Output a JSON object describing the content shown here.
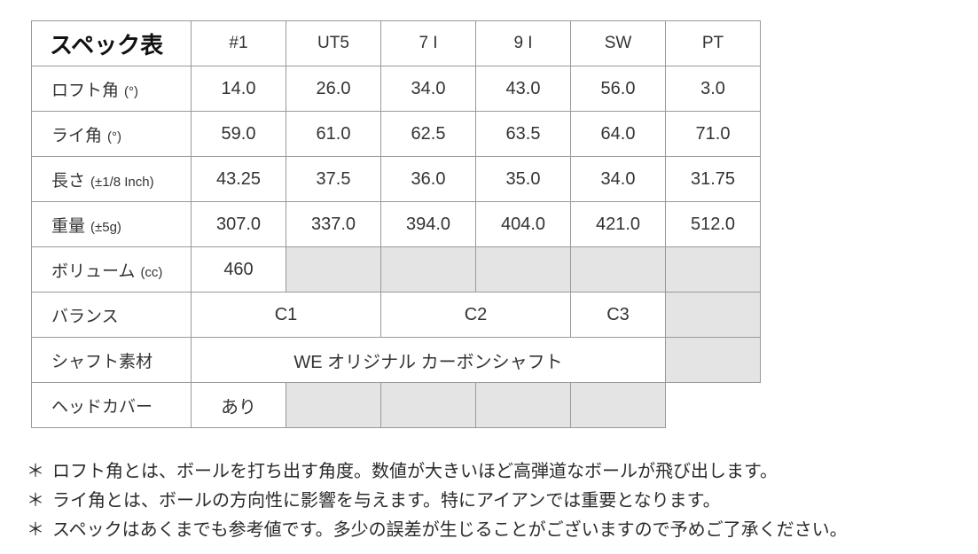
{
  "colors": {
    "grid": "#999999",
    "disabled_cell": "#e4e4e4",
    "text": "#333333",
    "title_text": "#111111"
  },
  "table": {
    "title": "スペック表",
    "columns": [
      "#1",
      "UT5",
      "7 I",
      "9 I",
      "SW",
      "PT"
    ],
    "loft": {
      "label": "ロフト角",
      "unit": "(°)",
      "values": [
        "14.0",
        "26.0",
        "34.0",
        "43.0",
        "56.0",
        "3.0"
      ]
    },
    "lie": {
      "label": "ライ角",
      "unit": "(°)",
      "values": [
        "59.0",
        "61.0",
        "62.5",
        "63.5",
        "64.0",
        "71.0"
      ]
    },
    "length": {
      "label": "長さ",
      "unit": "(±1/8 Inch)",
      "values": [
        "43.25",
        "37.5",
        "36.0",
        "35.0",
        "34.0",
        "31.75"
      ]
    },
    "weight": {
      "label": "重量",
      "unit": "(±5g)",
      "values": [
        "307.0",
        "337.0",
        "394.0",
        "404.0",
        "421.0",
        "512.0"
      ]
    },
    "volume": {
      "label": "ボリューム",
      "unit": "(cc)",
      "value": "460"
    },
    "balance": {
      "label": "バランス",
      "c1": "C1",
      "c2": "C2",
      "c3": "C3"
    },
    "shaft": {
      "label": "シャフト素材",
      "value": "WE オリジナル カーボンシャフト"
    },
    "headcover": {
      "label": "ヘッドカバー",
      "value": "あり"
    }
  },
  "footnotes": {
    "marker": "＊",
    "items": [
      "ロフト角とは、ボールを打ち出す角度。数値が大きいほど高弾道なボールが飛び出します。",
      "ライ角とは、ボールの方向性に影響を与えます。特にアイアンでは重要となります。",
      "スペックはあくまでも参考値です。多少の誤差が生じることがございますので予めご了承ください。"
    ]
  }
}
